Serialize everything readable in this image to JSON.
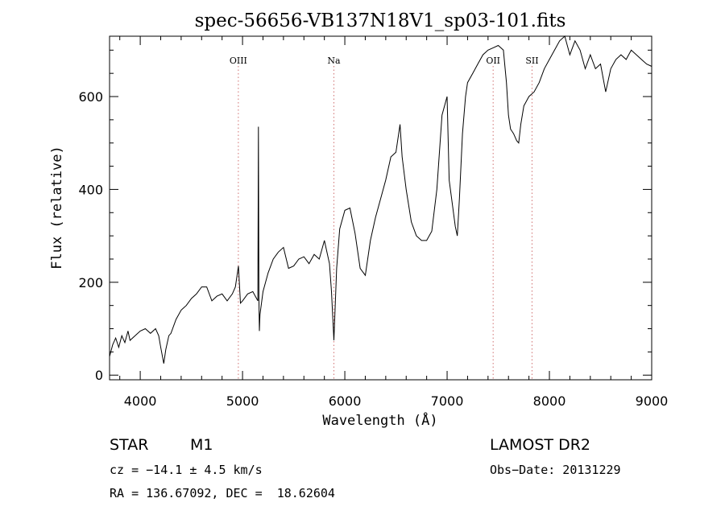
{
  "chart_data": {
    "type": "line",
    "title": "spec-56656-VB137N18V1_sp03-101.fits",
    "xlabel": "Wavelength (Å)",
    "ylabel": "Flux (relative)",
    "xlim": [
      3700,
      9000
    ],
    "ylim": [
      -10,
      730
    ],
    "xticks": [
      4000,
      5000,
      6000,
      7000,
      8000,
      9000
    ],
    "yticks": [
      0,
      200,
      400,
      600
    ],
    "grid": false,
    "line_marks": [
      {
        "label": "OIII",
        "x": 4959
      },
      {
        "label": "Na",
        "x": 5893
      },
      {
        "label": "OII",
        "x": 7450
      },
      {
        "label": "SII",
        "x": 7830
      }
    ],
    "series": [
      {
        "x": [
          3700,
          3730,
          3760,
          3790,
          3820,
          3850,
          3880,
          3900,
          3950,
          4000,
          4050,
          4100,
          4150,
          4180,
          4200,
          4230,
          4250,
          4280,
          4300,
          4350,
          4400,
          4450,
          4500,
          4550,
          4600,
          4650,
          4700,
          4750,
          4800,
          4850,
          4900,
          4930,
          4960,
          4980,
          5000,
          5050,
          5100,
          5150,
          5155,
          5160,
          5165,
          5170,
          5200,
          5250,
          5300,
          5350,
          5400,
          5450,
          5500,
          5550,
          5600,
          5650,
          5700,
          5750,
          5800,
          5850,
          5870,
          5893,
          5920,
          5950,
          6000,
          6050,
          6100,
          6150,
          6200,
          6250,
          6300,
          6350,
          6400,
          6450,
          6500,
          6540,
          6560,
          6600,
          6650,
          6700,
          6750,
          6800,
          6850,
          6900,
          6950,
          7000,
          7020,
          7050,
          7080,
          7100,
          7120,
          7150,
          7180,
          7200,
          7250,
          7300,
          7350,
          7400,
          7450,
          7500,
          7550,
          7580,
          7600,
          7620,
          7650,
          7680,
          7700,
          7720,
          7750,
          7800,
          7850,
          7900,
          7950,
          8000,
          8050,
          8100,
          8150,
          8200,
          8250,
          8300,
          8350,
          8400,
          8450,
          8500,
          8550,
          8600,
          8650,
          8700,
          8750,
          8800,
          8850,
          8900,
          8950,
          9000
        ],
        "y": [
          40,
          65,
          80,
          60,
          85,
          70,
          95,
          75,
          85,
          95,
          100,
          90,
          100,
          85,
          60,
          25,
          55,
          85,
          90,
          120,
          140,
          150,
          165,
          175,
          190,
          190,
          160,
          170,
          175,
          160,
          175,
          190,
          235,
          155,
          160,
          175,
          180,
          160,
          535,
          165,
          95,
          130,
          180,
          220,
          250,
          265,
          275,
          230,
          235,
          250,
          255,
          240,
          260,
          250,
          290,
          240,
          180,
          75,
          230,
          315,
          355,
          360,
          305,
          230,
          215,
          290,
          340,
          380,
          420,
          470,
          480,
          540,
          470,
          400,
          330,
          300,
          290,
          290,
          310,
          400,
          560,
          600,
          420,
          370,
          320,
          300,
          380,
          520,
          600,
          630,
          650,
          670,
          690,
          700,
          705,
          710,
          700,
          630,
          560,
          530,
          520,
          505,
          500,
          540,
          580,
          600,
          610,
          630,
          660,
          680,
          700,
          720,
          730,
          690,
          720,
          700,
          660,
          690,
          660,
          670,
          610,
          660,
          680,
          690,
          680,
          700,
          690,
          680,
          670,
          665
        ]
      }
    ]
  },
  "info": {
    "object_type": "STAR",
    "subclass": "M1",
    "release": "LAMOST DR2",
    "cz": "cz = −14.1 ± 4.5 km/s",
    "obs_date": "Obs−Date: 20131229",
    "radec": "RA = 136.67092, DEC =  18.62604"
  }
}
